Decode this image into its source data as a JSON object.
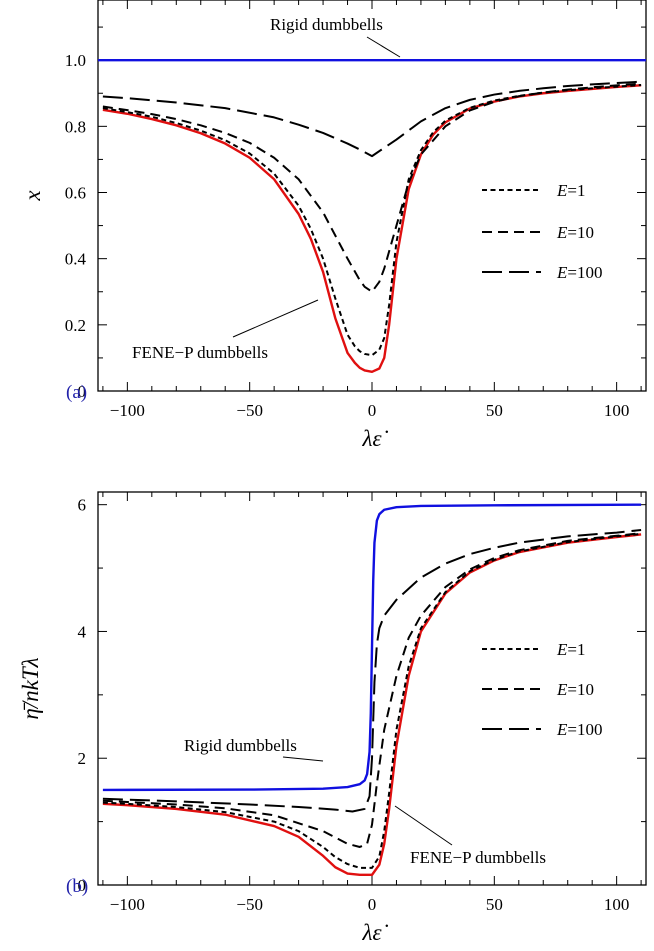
{
  "chart_data": [
    {
      "type": "line",
      "panel_label": "(a)",
      "xlabel": "λε̇",
      "ylabel": "x",
      "xlim": [
        -112,
        112
      ],
      "ylim": [
        0,
        1.2
      ],
      "xticks": [
        -100,
        -50,
        0,
        50,
        100
      ],
      "xtick_labels": [
        "−100",
        "−50",
        "0",
        "50",
        "100"
      ],
      "yticks": [
        0,
        0.2,
        0.4,
        0.6,
        0.8,
        1.0
      ],
      "ytick_labels": [
        "0",
        "0.2",
        "0.4",
        "0.6",
        "0.8",
        "1.0"
      ],
      "legend_position": "center-right",
      "legend": [
        {
          "label": "E=1",
          "series": "e1"
        },
        {
          "label": "E=10",
          "series": "e10"
        },
        {
          "label": "E=100",
          "series": "e100"
        }
      ],
      "annotations": [
        {
          "text": "Rigid dumbbells",
          "series": "rigid"
        },
        {
          "text": "FENE−P dumbbells",
          "series": "fene"
        }
      ],
      "series": [
        {
          "id": "rigid",
          "color": "#1010e0",
          "dash": "solid",
          "x": [
            -112,
            112
          ],
          "y": [
            1.0,
            1.0
          ]
        },
        {
          "id": "fene",
          "color": "#e01010",
          "dash": "solid",
          "x": [
            -110,
            -100,
            -90,
            -80,
            -70,
            -60,
            -50,
            -40,
            -30,
            -25,
            -20,
            -15,
            -10,
            -7,
            -5,
            -3,
            0,
            3,
            5,
            7,
            10,
            15,
            20,
            25,
            30,
            40,
            50,
            60,
            70,
            80,
            90,
            100,
            110
          ],
          "y": [
            0.85,
            0.838,
            0.822,
            0.803,
            0.779,
            0.748,
            0.705,
            0.64,
            0.535,
            0.46,
            0.36,
            0.22,
            0.115,
            0.085,
            0.07,
            0.062,
            0.058,
            0.068,
            0.1,
            0.2,
            0.4,
            0.61,
            0.715,
            0.775,
            0.812,
            0.854,
            0.875,
            0.89,
            0.9,
            0.907,
            0.913,
            0.919,
            0.924
          ]
        },
        {
          "id": "e1",
          "color": "#000000",
          "dash": "short",
          "x": [
            -110,
            -100,
            -90,
            -80,
            -70,
            -60,
            -50,
            -40,
            -30,
            -25,
            -20,
            -15,
            -10,
            -7,
            -5,
            -3,
            0,
            3,
            5,
            7,
            10,
            15,
            20,
            25,
            30,
            40,
            50,
            60,
            70,
            80,
            90,
            100,
            110
          ],
          "y": [
            0.855,
            0.843,
            0.829,
            0.81,
            0.787,
            0.758,
            0.718,
            0.657,
            0.56,
            0.49,
            0.4,
            0.28,
            0.17,
            0.135,
            0.12,
            0.112,
            0.108,
            0.125,
            0.16,
            0.26,
            0.45,
            0.64,
            0.728,
            0.782,
            0.817,
            0.856,
            0.878,
            0.892,
            0.902,
            0.909,
            0.915,
            0.92,
            0.925
          ]
        },
        {
          "id": "e10",
          "color": "#000000",
          "dash": "medium",
          "x": [
            -110,
            -100,
            -90,
            -80,
            -70,
            -60,
            -50,
            -40,
            -30,
            -20,
            -15,
            -10,
            -5,
            -3,
            0,
            3,
            5,
            10,
            15,
            20,
            30,
            40,
            50,
            60,
            70,
            80,
            90,
            100,
            110
          ],
          "y": [
            0.86,
            0.849,
            0.837,
            0.822,
            0.803,
            0.78,
            0.75,
            0.705,
            0.64,
            0.54,
            0.47,
            0.4,
            0.335,
            0.315,
            0.3,
            0.33,
            0.37,
            0.5,
            0.63,
            0.715,
            0.8,
            0.848,
            0.874,
            0.891,
            0.902,
            0.911,
            0.918,
            0.924,
            0.929
          ]
        },
        {
          "id": "e100",
          "color": "#000000",
          "dash": "long",
          "x": [
            -110,
            -100,
            -80,
            -60,
            -40,
            -30,
            -20,
            -10,
            -5,
            0,
            5,
            10,
            20,
            30,
            40,
            50,
            60,
            70,
            80,
            90,
            100,
            110
          ],
          "y": [
            0.89,
            0.885,
            0.872,
            0.855,
            0.827,
            0.805,
            0.78,
            0.748,
            0.73,
            0.71,
            0.735,
            0.76,
            0.815,
            0.855,
            0.88,
            0.896,
            0.907,
            0.915,
            0.922,
            0.927,
            0.931,
            0.935
          ]
        }
      ]
    },
    {
      "type": "line",
      "panel_label": "(b)",
      "xlabel": "λε̇",
      "ylabel": "η̄/nkTλ",
      "xlim": [
        -112,
        112
      ],
      "ylim": [
        0,
        6.2
      ],
      "xticks": [
        -100,
        -50,
        0,
        50,
        100
      ],
      "xtick_labels": [
        "−100",
        "−50",
        "0",
        "50",
        "100"
      ],
      "yticks": [
        0,
        2,
        4,
        6
      ],
      "ytick_labels": [
        "0",
        "2",
        "4",
        "6"
      ],
      "legend_position": "center-right",
      "legend": [
        {
          "label": "E=1",
          "series": "e1"
        },
        {
          "label": "E=10",
          "series": "e10"
        },
        {
          "label": "E=100",
          "series": "e100"
        }
      ],
      "annotations": [
        {
          "text": "Rigid dumbbells",
          "series": "rigid"
        },
        {
          "text": "FENE−P dumbbells",
          "series": "fene"
        }
      ],
      "series": [
        {
          "id": "rigid",
          "color": "#1010e0",
          "dash": "solid",
          "x": [
            -110,
            -50,
            -20,
            -10,
            -5,
            -3,
            -2,
            -1,
            -0.5,
            0,
            0.5,
            1,
            2,
            3,
            5,
            10,
            20,
            50,
            110
          ],
          "y": [
            1.5,
            1.505,
            1.52,
            1.545,
            1.59,
            1.65,
            1.75,
            2.1,
            2.7,
            3.75,
            4.8,
            5.4,
            5.75,
            5.85,
            5.92,
            5.96,
            5.98,
            5.99,
            6.0
          ]
        },
        {
          "id": "fene",
          "color": "#e01010",
          "dash": "solid",
          "x": [
            -110,
            -100,
            -80,
            -60,
            -40,
            -30,
            -20,
            -15,
            -10,
            -5,
            0,
            3,
            5,
            7,
            10,
            15,
            20,
            30,
            40,
            50,
            60,
            80,
            100,
            110
          ],
          "y": [
            1.28,
            1.26,
            1.2,
            1.11,
            0.93,
            0.76,
            0.46,
            0.28,
            0.18,
            0.16,
            0.16,
            0.32,
            0.65,
            1.2,
            2.2,
            3.3,
            4.0,
            4.6,
            4.93,
            5.12,
            5.25,
            5.4,
            5.49,
            5.53
          ]
        },
        {
          "id": "e1",
          "color": "#000000",
          "dash": "short",
          "x": [
            -110,
            -100,
            -80,
            -60,
            -40,
            -30,
            -20,
            -15,
            -10,
            -5,
            0,
            3,
            5,
            7,
            10,
            15,
            20,
            30,
            40,
            50,
            60,
            80,
            100,
            110
          ],
          "y": [
            1.3,
            1.28,
            1.23,
            1.15,
            1.0,
            0.85,
            0.6,
            0.44,
            0.33,
            0.27,
            0.27,
            0.45,
            0.85,
            1.45,
            2.45,
            3.45,
            4.05,
            4.62,
            4.95,
            5.13,
            5.26,
            5.41,
            5.5,
            5.54
          ]
        },
        {
          "id": "e10",
          "color": "#000000",
          "dash": "medium",
          "x": [
            -110,
            -100,
            -80,
            -60,
            -40,
            -20,
            -10,
            -5,
            -2,
            0,
            2,
            5,
            10,
            15,
            20,
            30,
            40,
            50,
            60,
            80,
            100,
            110
          ],
          "y": [
            1.33,
            1.31,
            1.27,
            1.21,
            1.1,
            0.85,
            0.65,
            0.6,
            0.65,
            0.95,
            1.6,
            2.45,
            3.3,
            3.9,
            4.25,
            4.7,
            4.98,
            5.16,
            5.28,
            5.43,
            5.51,
            5.55
          ]
        },
        {
          "id": "e100",
          "color": "#000000",
          "dash": "long",
          "x": [
            -110,
            -80,
            -50,
            -30,
            -15,
            -8,
            -3,
            -1,
            0,
            1,
            2,
            3,
            5,
            10,
            20,
            30,
            40,
            50,
            60,
            80,
            100,
            110
          ],
          "y": [
            1.36,
            1.32,
            1.27,
            1.23,
            1.19,
            1.16,
            1.2,
            1.4,
            2.0,
            3.2,
            3.8,
            4.05,
            4.25,
            4.5,
            4.85,
            5.07,
            5.22,
            5.32,
            5.4,
            5.5,
            5.56,
            5.6
          ]
        }
      ]
    }
  ]
}
